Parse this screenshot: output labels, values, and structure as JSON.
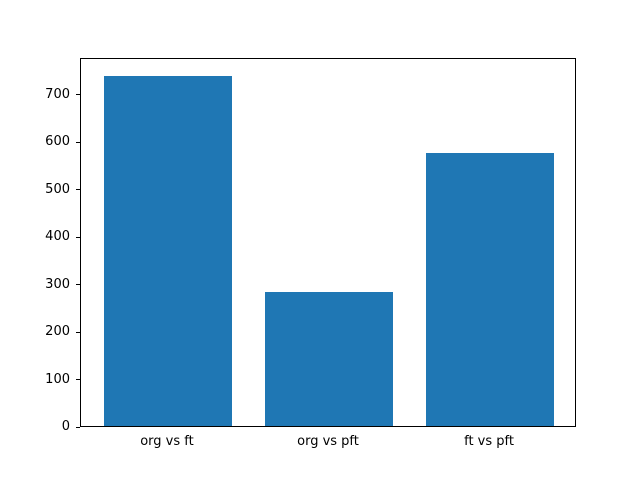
{
  "chart_data": {
    "type": "bar",
    "title": "",
    "xlabel": "",
    "ylabel": "",
    "categories": [
      "org vs ft",
      "org vs pft",
      "ft vs pft"
    ],
    "values": [
      740,
      283,
      578
    ],
    "ylim": [
      0,
      777
    ],
    "yticks": [
      0,
      100,
      200,
      300,
      400,
      500,
      600,
      700
    ],
    "xlim": [
      -0.54,
      2.54
    ],
    "bar_width": 0.8,
    "bar_color": "#1f77b4",
    "axes_edge_color": "#000000",
    "background_color": "#ffffff",
    "grid": false,
    "legend": false
  }
}
